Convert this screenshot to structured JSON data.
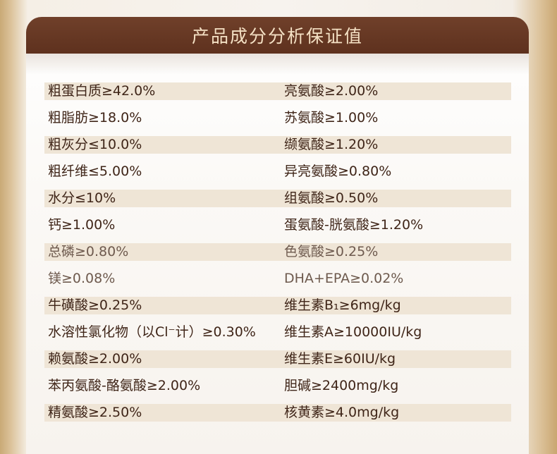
{
  "header": {
    "title": "产品成分分析保证值"
  },
  "rows": [
    {
      "left": "粗蛋白质≥42.0%",
      "right": "亮氨酸≥2.00%"
    },
    {
      "left": "粗脂肪≥18.0%",
      "right": "苏氨酸≥1.00%"
    },
    {
      "left": "粗灰分≤10.0%",
      "right": "缬氨酸≥1.20%"
    },
    {
      "left": "粗纤维≤5.00%",
      "right": "异亮氨酸≥0.80%"
    },
    {
      "left": "水分≤10%",
      "right": "组氨酸≥0.50%"
    },
    {
      "left": "钙≥1.00%",
      "right": "蛋氨酸-胱氨酸≥1.20%"
    },
    {
      "left": "总磷≥0.80%",
      "right": "色氨酸≥0.25%"
    },
    {
      "left": "镁≥0.08%",
      "right": "DHA+EPA≥0.02%"
    },
    {
      "left": "牛磺酸≥0.25%",
      "right": "维生素B₁≥6mg/kg"
    },
    {
      "left": "水溶性氯化物（以Cl⁻计）≥0.30%",
      "right": "维生素A≥10000IU/kg"
    },
    {
      "left": "赖氨酸≥2.00%",
      "right": "维生素E≥60IU/kg"
    },
    {
      "left": "苯丙氨酸-酪氨酸≥2.00%",
      "right": "胆碱≥2400mg/kg"
    },
    {
      "left": "精氨酸≥2.50%",
      "right": "核黄素≥4.0mg/kg"
    }
  ]
}
